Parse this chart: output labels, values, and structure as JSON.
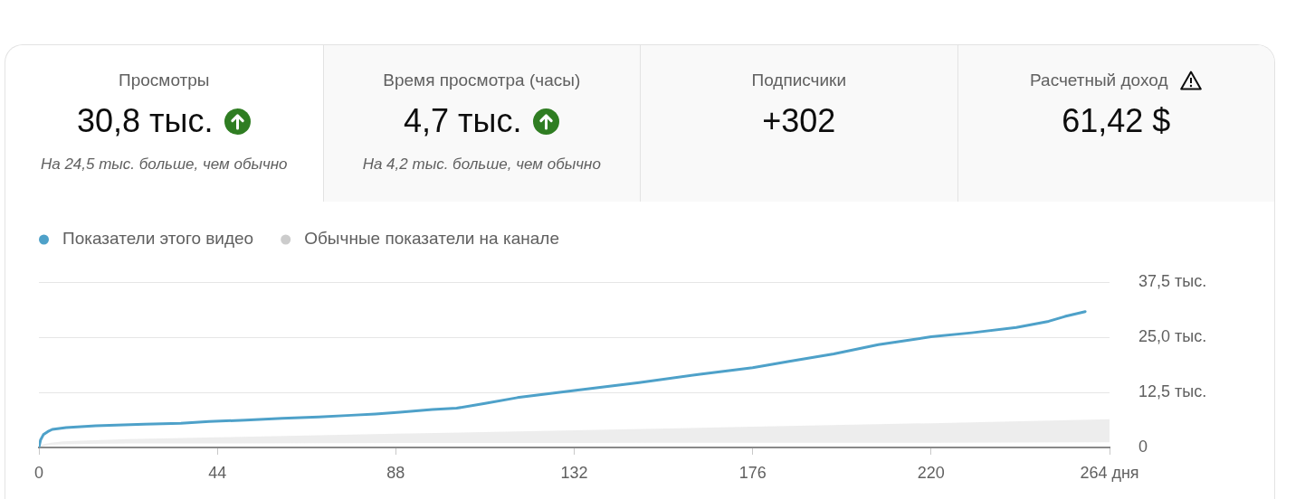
{
  "chart_data": [
    {
      "type": "other",
      "title": "Просмотры",
      "annotations": [
        "30,8 тыс.",
        "На 24,5 тыс. больше, чем обычно"
      ]
    },
    {
      "type": "other",
      "title": "Время просмотра (часы)",
      "annotations": [
        "4,7 тыс.",
        "На 4,2 тыс. больше, чем обычно"
      ]
    },
    {
      "type": "other",
      "title": "Подписчики",
      "annotations": [
        "+302"
      ]
    },
    {
      "type": "other",
      "title": "Расчетный доход",
      "annotations": [
        "61,42 $"
      ]
    },
    {
      "type": "line",
      "series": [
        {
          "name": "Показатели этого видео",
          "color": "#4ea1c9",
          "x": [
            0,
            0.4,
            1.1,
            2.2,
            3.3,
            6.7,
            14,
            26,
            35,
            42,
            51,
            60,
            69,
            77,
            83,
            89,
            97,
            103,
            110,
            118,
            132,
            148,
            163,
            176,
            185,
            196,
            207,
            220,
            230,
            241,
            249,
            253,
            258
          ],
          "values": [
            0,
            1.7,
            2.9,
            3.6,
            4.1,
            4.5,
            4.9,
            5.3,
            5.5,
            5.9,
            6.2,
            6.6,
            6.9,
            7.3,
            7.6,
            8.0,
            8.6,
            8.9,
            10.0,
            11.3,
            12.9,
            14.7,
            16.6,
            18.1,
            19.5,
            21.2,
            23.3,
            25.1,
            26.0,
            27.2,
            28.6,
            29.7,
            30.8
          ]
        },
        {
          "name": "Обычные показатели на канале",
          "color": "#cccccc",
          "x": [
            0,
            1,
            3,
            6,
            12,
            22,
            44,
            88,
            132,
            176,
            220,
            264
          ],
          "values": [
            null,
            null,
            null,
            null,
            null,
            null,
            null,
            null,
            null,
            null,
            null,
            null
          ],
          "upper": [
            0,
            0.7,
            1.1,
            1.4,
            1.6,
            1.9,
            2.3,
            3.1,
            3.9,
            4.7,
            5.5,
            6.4
          ],
          "lower": [
            0,
            0.3,
            0.6,
            0.7,
            0.8,
            0.9,
            0.9,
            1.0,
            1.0,
            1.1,
            1.1,
            1.2
          ]
        }
      ],
      "xlim": [
        0,
        264
      ],
      "xticks": [
        0,
        44,
        88,
        132,
        176,
        220,
        {
          "value": 264,
          "label": "264 дня"
        }
      ],
      "ylim": [
        0,
        37.5
      ],
      "yticks": [
        0,
        {
          "value": 12.5,
          "label": "12,5 тыс."
        },
        {
          "value": 25,
          "label": "25,0 тыс."
        },
        {
          "value": 37.5,
          "label": "37,5 тыс."
        }
      ],
      "grid": "y",
      "legend": "top left",
      "marker": "none"
    }
  ]
}
